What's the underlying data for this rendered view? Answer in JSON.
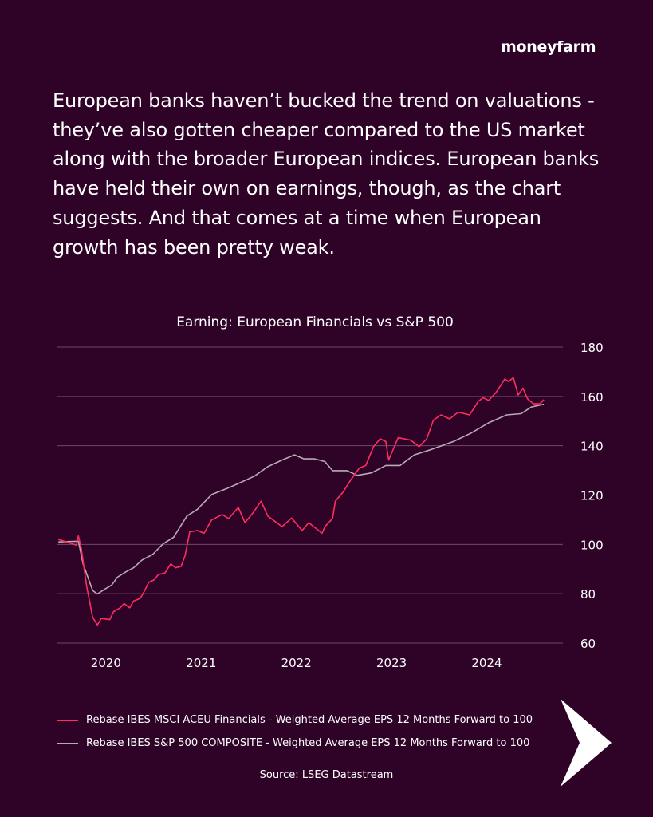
{
  "brand": {
    "logo_text": "moneyfarm"
  },
  "intro_text": "European banks haven’t bucked the trend on valuations - they’ve also gotten cheaper compared to the US market along with the broader European indices. European banks have held their own on earnings, though, as the chart suggests. And that comes at a time when European growth has been pretty weak.",
  "colors": {
    "background": "#2f0328",
    "series_red": "#ff2d5e",
    "series_grey": "#b8aab4",
    "grid": "#6b4a63"
  },
  "icons": {
    "next": "chevron-right-arrow-icon"
  },
  "chart_data": {
    "type": "line",
    "title": "Earning: European Financials vs S&P 500",
    "xlim": [
      2019.49,
      2024.8
    ],
    "ylim": [
      60,
      180
    ],
    "y_ticks": [
      60,
      80,
      100,
      120,
      140,
      160,
      180
    ],
    "x_ticks": [
      2020,
      2021,
      2022,
      2023,
      2024
    ],
    "x_tick_labels": [
      "2020",
      "2021",
      "2022",
      "2023",
      "2024"
    ],
    "y_axis_side": "right",
    "grid": "horizontal",
    "legend_placement": "bottom",
    "series": [
      {
        "name": "Rebase IBES MSCI ACEU Financials - Weighted Average EPS 12 Months Forward to 100",
        "color": "#ff2d5e",
        "points": [
          [
            2019.5,
            102.0
          ],
          [
            2019.56,
            101.3
          ],
          [
            2019.69,
            99.7
          ],
          [
            2019.71,
            103.4
          ],
          [
            2019.74,
            98.6
          ],
          [
            2019.8,
            82.4
          ],
          [
            2019.86,
            70.5
          ],
          [
            2019.91,
            67.3
          ],
          [
            2019.95,
            70.0
          ],
          [
            2020.04,
            69.5
          ],
          [
            2020.08,
            72.7
          ],
          [
            2020.15,
            74.3
          ],
          [
            2020.19,
            76.0
          ],
          [
            2020.25,
            74.3
          ],
          [
            2020.29,
            77.0
          ],
          [
            2020.36,
            78.1
          ],
          [
            2020.4,
            80.8
          ],
          [
            2020.45,
            84.6
          ],
          [
            2020.51,
            85.7
          ],
          [
            2020.55,
            87.8
          ],
          [
            2020.62,
            88.4
          ],
          [
            2020.68,
            92.1
          ],
          [
            2020.73,
            90.5
          ],
          [
            2020.79,
            91.1
          ],
          [
            2020.83,
            95.4
          ],
          [
            2020.88,
            105.1
          ],
          [
            2020.96,
            105.6
          ],
          [
            2021.03,
            104.5
          ],
          [
            2021.11,
            109.9
          ],
          [
            2021.22,
            112.1
          ],
          [
            2021.29,
            110.5
          ],
          [
            2021.39,
            115.0
          ],
          [
            2021.46,
            108.8
          ],
          [
            2021.54,
            112.6
          ],
          [
            2021.63,
            117.5
          ],
          [
            2021.7,
            111.5
          ],
          [
            2021.85,
            107.2
          ],
          [
            2021.95,
            110.7
          ],
          [
            2022.06,
            105.6
          ],
          [
            2022.13,
            108.8
          ],
          [
            2022.27,
            104.5
          ],
          [
            2022.3,
            107.2
          ],
          [
            2022.38,
            110.5
          ],
          [
            2022.41,
            117.5
          ],
          [
            2022.49,
            121.2
          ],
          [
            2022.58,
            126.6
          ],
          [
            2022.66,
            130.9
          ],
          [
            2022.73,
            132.0
          ],
          [
            2022.77,
            135.8
          ],
          [
            2022.81,
            139.6
          ],
          [
            2022.88,
            142.8
          ],
          [
            2022.94,
            141.7
          ],
          [
            2022.97,
            134.2
          ],
          [
            2023.07,
            143.3
          ],
          [
            2023.2,
            142.3
          ],
          [
            2023.29,
            139.6
          ],
          [
            2023.37,
            142.8
          ],
          [
            2023.44,
            150.4
          ],
          [
            2023.52,
            152.5
          ],
          [
            2023.61,
            150.9
          ],
          [
            2023.7,
            153.6
          ],
          [
            2023.82,
            152.5
          ],
          [
            2023.91,
            157.9
          ],
          [
            2023.96,
            159.5
          ],
          [
            2024.02,
            158.4
          ],
          [
            2024.1,
            161.7
          ],
          [
            2024.19,
            167.1
          ],
          [
            2024.23,
            166.0
          ],
          [
            2024.28,
            167.6
          ],
          [
            2024.33,
            160.6
          ],
          [
            2024.38,
            163.3
          ],
          [
            2024.43,
            159.0
          ],
          [
            2024.49,
            157.0
          ],
          [
            2024.56,
            157.0
          ],
          [
            2024.6,
            158.7
          ]
        ]
      },
      {
        "name": "Rebase IBES S&P 500 COMPOSITE - Weighted Average EPS 12 Months Forward to 100",
        "color": "#b8aab4",
        "points": [
          [
            2019.5,
            101.0
          ],
          [
            2019.71,
            101.3
          ],
          [
            2019.76,
            92.1
          ],
          [
            2019.86,
            81.3
          ],
          [
            2019.91,
            79.9
          ],
          [
            2019.99,
            81.9
          ],
          [
            2020.06,
            83.5
          ],
          [
            2020.12,
            86.7
          ],
          [
            2020.21,
            88.9
          ],
          [
            2020.29,
            90.5
          ],
          [
            2020.38,
            93.7
          ],
          [
            2020.49,
            95.9
          ],
          [
            2020.6,
            100.2
          ],
          [
            2020.71,
            102.9
          ],
          [
            2020.85,
            111.5
          ],
          [
            2020.96,
            114.2
          ],
          [
            2021.11,
            120.2
          ],
          [
            2021.26,
            122.5
          ],
          [
            2021.41,
            125.0
          ],
          [
            2021.56,
            127.7
          ],
          [
            2021.7,
            131.5
          ],
          [
            2021.85,
            134.2
          ],
          [
            2021.98,
            136.3
          ],
          [
            2022.08,
            134.7
          ],
          [
            2022.19,
            134.7
          ],
          [
            2022.3,
            133.6
          ],
          [
            2022.38,
            129.9
          ],
          [
            2022.53,
            129.9
          ],
          [
            2022.64,
            128.0
          ],
          [
            2022.79,
            129.0
          ],
          [
            2022.94,
            132.0
          ],
          [
            2023.09,
            132.0
          ],
          [
            2023.24,
            136.3
          ],
          [
            2023.42,
            138.5
          ],
          [
            2023.65,
            141.7
          ],
          [
            2023.83,
            145.0
          ],
          [
            2024.02,
            149.3
          ],
          [
            2024.21,
            152.5
          ],
          [
            2024.36,
            153.0
          ],
          [
            2024.47,
            155.7
          ],
          [
            2024.6,
            156.8
          ]
        ]
      }
    ],
    "source": "Source: LSEG Datastream"
  }
}
